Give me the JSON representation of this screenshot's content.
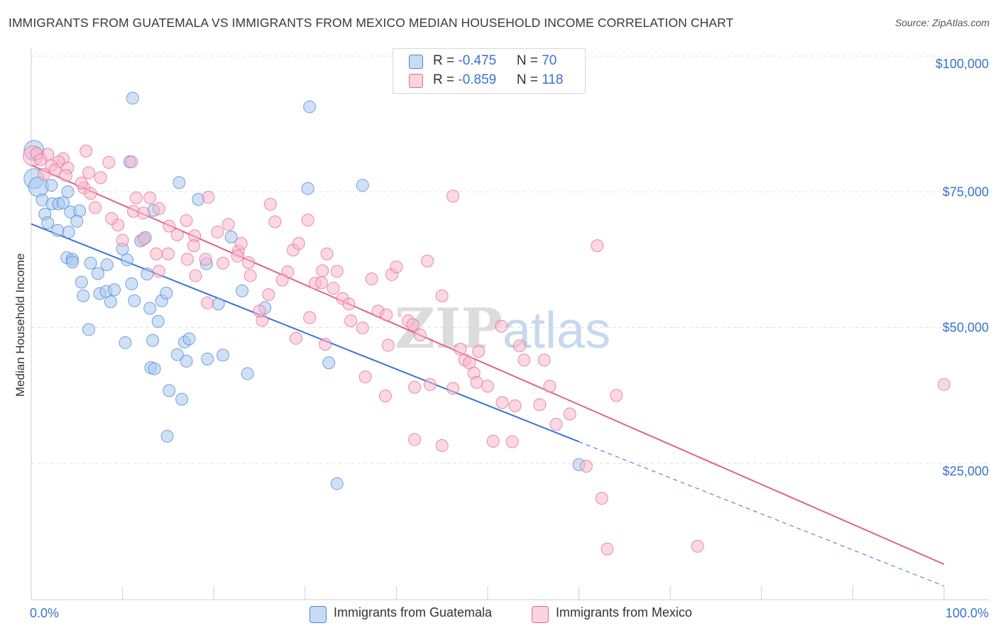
{
  "header": {
    "title": "IMMIGRANTS FROM GUATEMALA VS IMMIGRANTS FROM MEXICO MEDIAN HOUSEHOLD INCOME CORRELATION CHART",
    "source": "Source: ZipAtlas.com"
  },
  "watermark": "ZIPatlas",
  "legend": {
    "rows": [
      {
        "r_label": "R = ",
        "r_value": "-0.475",
        "n_label": "N = ",
        "n_value": "70",
        "color": "#aac8ef",
        "stroke": "#4a86d6"
      },
      {
        "r_label": "R = ",
        "r_value": "-0.859",
        "n_label": "N = ",
        "n_value": "118",
        "color": "#f7b8cc",
        "stroke": "#e3698f"
      }
    ]
  },
  "bottom_legend": {
    "guatemala": "Immigrants from Guatemala",
    "mexico": "Immigrants from Mexico"
  },
  "chart_data": {
    "type": "scatter",
    "title": "IMMIGRANTS FROM GUATEMALA VS IMMIGRANTS FROM MEXICO MEDIAN HOUSEHOLD INCOME CORRELATION CHART",
    "ylabel": "Median Household Income",
    "xlabel": "",
    "x_ticks": [
      "0.0%",
      "100.0%"
    ],
    "y_ticks": [
      "$25,000",
      "$50,000",
      "$75,000",
      "$100,000"
    ],
    "y_tick_values": [
      25000,
      50000,
      75000,
      100000
    ],
    "xlim": [
      0,
      100
    ],
    "ylim": [
      2000,
      103000
    ],
    "grid": true,
    "legend_position": "top-center",
    "series": [
      {
        "name": "Immigrants from Guatemala",
        "color": "#4a86d6",
        "fill": "#aac8ef",
        "points": [
          [
            0.3,
            84.5
          ],
          [
            0.3,
            79.3
          ],
          [
            0.8,
            77.8
          ],
          [
            1.2,
            75.4
          ],
          [
            2.2,
            78.1
          ],
          [
            2.3,
            74.7
          ],
          [
            1.5,
            72.8
          ],
          [
            3.0,
            74.7
          ],
          [
            3.5,
            74.9
          ],
          [
            1.8,
            71.2
          ],
          [
            4.3,
            73.2
          ],
          [
            4.0,
            76.9
          ],
          [
            5.3,
            73.4
          ],
          [
            4.1,
            69.5
          ],
          [
            2.9,
            69.8
          ],
          [
            3.9,
            64.8
          ],
          [
            4.5,
            64.5
          ],
          [
            4.5,
            64.0
          ],
          [
            6.5,
            63.8
          ],
          [
            5.5,
            60.3
          ],
          [
            7.3,
            61.9
          ],
          [
            8.3,
            63.5
          ],
          [
            10.0,
            66.4
          ],
          [
            10.5,
            64.4
          ],
          [
            12.7,
            61.8
          ],
          [
            5.7,
            57.8
          ],
          [
            7.5,
            58.2
          ],
          [
            8.2,
            58.6
          ],
          [
            9.1,
            58.9
          ],
          [
            8.7,
            56.7
          ],
          [
            11.3,
            56.9
          ],
          [
            13.0,
            55.5
          ],
          [
            14.3,
            56.9
          ],
          [
            14.8,
            58.3
          ],
          [
            13.9,
            53.1
          ],
          [
            6.3,
            51.6
          ],
          [
            10.3,
            49.2
          ],
          [
            13.3,
            49.6
          ],
          [
            16.8,
            49.3
          ],
          [
            17.3,
            49.9
          ],
          [
            17.0,
            45.8
          ],
          [
            19.3,
            46.2
          ],
          [
            21.0,
            46.9
          ],
          [
            13.1,
            44.6
          ],
          [
            13.5,
            44.4
          ],
          [
            23.7,
            43.5
          ],
          [
            15.1,
            40.4
          ],
          [
            16.5,
            38.8
          ],
          [
            14.9,
            32.0
          ],
          [
            11.1,
            94.1
          ],
          [
            30.5,
            92.5
          ],
          [
            16.2,
            78.6
          ],
          [
            18.3,
            75.5
          ],
          [
            30.3,
            77.5
          ],
          [
            36.3,
            78.1
          ],
          [
            10.8,
            82.4
          ],
          [
            13.4,
            73.5
          ],
          [
            21.9,
            68.6
          ],
          [
            12.0,
            67.9
          ],
          [
            12.5,
            68.5
          ],
          [
            19.2,
            63.7
          ],
          [
            23.1,
            58.7
          ],
          [
            20.5,
            56.3
          ],
          [
            25.6,
            55.6
          ],
          [
            32.6,
            45.5
          ],
          [
            60.0,
            26.8
          ],
          [
            33.5,
            23.3
          ],
          [
            5.0,
            71.5
          ],
          [
            11.0,
            60.0
          ],
          [
            16.0,
            47.0
          ]
        ]
      },
      {
        "name": "Immigrants from Mexico",
        "color": "#e3698f",
        "fill": "#f7b8cc",
        "points": [
          [
            0.2,
            83.5
          ],
          [
            0.6,
            83.9
          ],
          [
            1.8,
            83.8
          ],
          [
            3.5,
            83.0
          ],
          [
            1.4,
            80.1
          ],
          [
            3.0,
            82.4
          ],
          [
            4.0,
            81.3
          ],
          [
            2.2,
            81.7
          ],
          [
            6.3,
            80.4
          ],
          [
            7.6,
            79.5
          ],
          [
            5.8,
            77.6
          ],
          [
            8.5,
            82.3
          ],
          [
            11.0,
            82.4
          ],
          [
            6.5,
            76.6
          ],
          [
            11.2,
            73.3
          ],
          [
            11.5,
            75.8
          ],
          [
            12.3,
            73.0
          ],
          [
            13.0,
            75.8
          ],
          [
            14.0,
            73.8
          ],
          [
            15.1,
            70.6
          ],
          [
            17.0,
            71.6
          ],
          [
            16.0,
            69.0
          ],
          [
            17.9,
            68.8
          ],
          [
            19.4,
            75.9
          ],
          [
            20.4,
            69.5
          ],
          [
            21.6,
            70.9
          ],
          [
            22.7,
            66.0
          ],
          [
            23.0,
            67.4
          ],
          [
            17.8,
            67.0
          ],
          [
            12.3,
            68.2
          ],
          [
            13.7,
            65.5
          ],
          [
            17.1,
            64.5
          ],
          [
            19.1,
            64.5
          ],
          [
            21.0,
            63.8
          ],
          [
            22.6,
            65.1
          ],
          [
            23.8,
            63.9
          ],
          [
            24.0,
            61.5
          ],
          [
            26.2,
            74.6
          ],
          [
            26.7,
            71.4
          ],
          [
            28.7,
            66.2
          ],
          [
            28.1,
            62.2
          ],
          [
            29.3,
            67.4
          ],
          [
            30.3,
            71.7
          ],
          [
            31.9,
            62.4
          ],
          [
            32.4,
            65.5
          ],
          [
            33.5,
            62.3
          ],
          [
            31.1,
            60.1
          ],
          [
            31.8,
            60.2
          ],
          [
            33.1,
            59.2
          ],
          [
            34.1,
            57.3
          ],
          [
            34.8,
            56.3
          ],
          [
            35.0,
            53.2
          ],
          [
            36.3,
            51.9
          ],
          [
            37.3,
            60.9
          ],
          [
            38.0,
            55.0
          ],
          [
            38.9,
            54.3
          ],
          [
            39.5,
            61.7
          ],
          [
            40.0,
            63.1
          ],
          [
            41.3,
            53.2
          ],
          [
            41.8,
            52.5
          ],
          [
            42.6,
            50.6
          ],
          [
            43.4,
            64.2
          ],
          [
            45.0,
            57.8
          ],
          [
            47.0,
            48.0
          ],
          [
            47.5,
            46.0
          ],
          [
            48.0,
            45.5
          ],
          [
            49.0,
            47.6
          ],
          [
            48.5,
            43.6
          ],
          [
            48.8,
            41.9
          ],
          [
            51.5,
            52.2
          ],
          [
            53.5,
            48.6
          ],
          [
            54.0,
            46.0
          ],
          [
            56.2,
            46.0
          ],
          [
            56.8,
            41.2
          ],
          [
            53.0,
            37.6
          ],
          [
            55.7,
            37.8
          ],
          [
            57.5,
            34.2
          ],
          [
            59.0,
            36.1
          ],
          [
            42.0,
            41.0
          ],
          [
            43.7,
            41.5
          ],
          [
            45.0,
            30.3
          ],
          [
            42.0,
            31.4
          ],
          [
            50.6,
            31.1
          ],
          [
            52.7,
            31.0
          ],
          [
            46.2,
            40.8
          ],
          [
            51.6,
            38.2
          ],
          [
            50.0,
            41.2
          ],
          [
            60.8,
            26.5
          ],
          [
            62.0,
            67.0
          ],
          [
            64.1,
            39.5
          ],
          [
            62.5,
            20.6
          ],
          [
            63.1,
            11.3
          ],
          [
            73.0,
            11.8
          ],
          [
            100.0,
            41.5
          ],
          [
            46.2,
            76.1
          ],
          [
            36.6,
            42.9
          ],
          [
            38.8,
            39.4
          ],
          [
            39.1,
            48.7
          ],
          [
            32.2,
            48.9
          ],
          [
            30.5,
            53.8
          ],
          [
            29.0,
            50.0
          ],
          [
            25.3,
            53.3
          ],
          [
            25.0,
            55.0
          ],
          [
            26.0,
            58.0
          ],
          [
            27.5,
            60.7
          ],
          [
            19.3,
            56.5
          ],
          [
            18.0,
            61.5
          ],
          [
            15.0,
            65.5
          ],
          [
            14.0,
            62.3
          ],
          [
            9.5,
            70.8
          ],
          [
            8.8,
            72.0
          ],
          [
            10.0,
            68.0
          ],
          [
            7.0,
            74.0
          ],
          [
            5.5,
            78.5
          ],
          [
            3.8,
            79.9
          ],
          [
            2.6,
            80.9
          ],
          [
            1.0,
            82.8
          ],
          [
            6.0,
            84.4
          ]
        ]
      }
    ],
    "trendlines": [
      {
        "series": "Immigrants from Guatemala",
        "solid_from": [
          0,
          71.0
        ],
        "solid_to": [
          60,
          31.0
        ],
        "dashed_to": [
          100,
          4.5
        ]
      },
      {
        "series": "Immigrants from Mexico",
        "from": [
          0,
          81.8
        ],
        "to": [
          100,
          8.5
        ]
      }
    ],
    "y_units": "thousands of dollars"
  }
}
